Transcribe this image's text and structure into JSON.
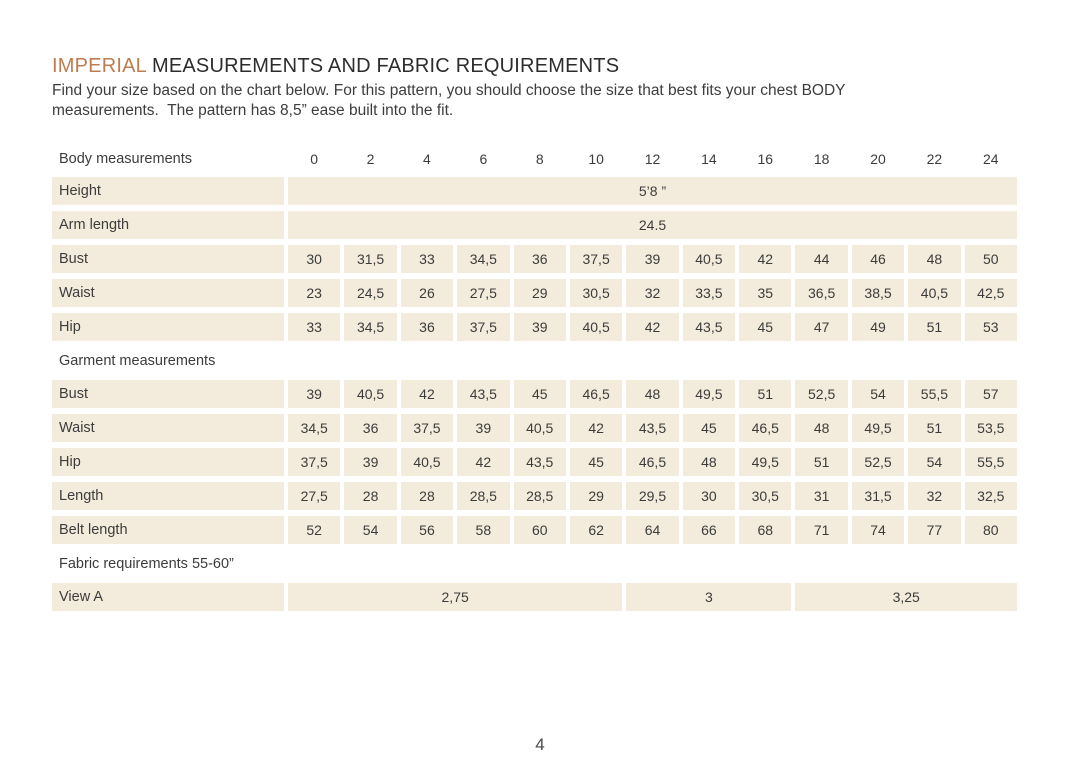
{
  "title": {
    "highlight": "IMPERIAL",
    "rest": " MEASUREMENTS AND FABRIC REQUIREMENTS"
  },
  "intro_lines": [
    "Find your size based on the chart below. For this pattern, you should choose the size that best fits your chest BODY",
    "measurements.  The pattern has 8,5” ease built into the fit."
  ],
  "colors": {
    "accent": "#bf7c50",
    "cell_background": "#f3ecdc",
    "text": "#3c3c3c"
  },
  "table": {
    "size_header": {
      "label": "Body measurements",
      "sizes": [
        "0",
        "2",
        "4",
        "6",
        "8",
        "10",
        "12",
        "14",
        "16",
        "18",
        "20",
        "22",
        "24"
      ]
    },
    "sections": [
      {
        "name": "body-measurements",
        "rows": [
          {
            "label": "Height",
            "merged": "5’8 ”"
          },
          {
            "label": "Arm length",
            "merged": "24.5"
          },
          {
            "label": "Bust",
            "values": [
              "30",
              "31,5",
              "33",
              "34,5",
              "36",
              "37,5",
              "39",
              "40,5",
              "42",
              "44",
              "46",
              "48",
              "50"
            ]
          },
          {
            "label": "Waist",
            "values": [
              "23",
              "24,5",
              "26",
              "27,5",
              "29",
              "30,5",
              "32",
              "33,5",
              "35",
              "36,5",
              "38,5",
              "40,5",
              "42,5"
            ]
          },
          {
            "label": "Hip",
            "values": [
              "33",
              "34,5",
              "36",
              "37,5",
              "39",
              "40,5",
              "42",
              "43,5",
              "45",
              "47",
              "49",
              "51",
              "53"
            ]
          }
        ]
      },
      {
        "name": "garment-measurements",
        "header": "Garment measurements",
        "rows": [
          {
            "label": "Bust",
            "values": [
              "39",
              "40,5",
              "42",
              "43,5",
              "45",
              "46,5",
              "48",
              "49,5",
              "51",
              "52,5",
              "54",
              "55,5",
              "57"
            ]
          },
          {
            "label": "Waist",
            "values": [
              "34,5",
              "36",
              "37,5",
              "39",
              "40,5",
              "42",
              "43,5",
              "45",
              "46,5",
              "48",
              "49,5",
              "51",
              "53,5"
            ]
          },
          {
            "label": "Hip",
            "values": [
              "37,5",
              "39",
              "40,5",
              "42",
              "43,5",
              "45",
              "46,5",
              "48",
              "49,5",
              "51",
              "52,5",
              "54",
              "55,5"
            ]
          },
          {
            "label": "Length",
            "values": [
              "27,5",
              "28",
              "28",
              "28,5",
              "28,5",
              "29",
              "29,5",
              "30",
              "30,5",
              "31",
              "31,5",
              "32",
              "32,5"
            ]
          },
          {
            "label": "Belt length",
            "values": [
              "52",
              "54",
              "56",
              "58",
              "60",
              "62",
              "64",
              "66",
              "68",
              "71",
              "74",
              "77",
              "80"
            ]
          }
        ]
      },
      {
        "name": "fabric-requirements",
        "header": "Fabric requirements 55-60”",
        "rows": [
          {
            "label": "View A",
            "spans": [
              {
                "value": "2,75",
                "cols": 6
              },
              {
                "value": "3",
                "cols": 3
              },
              {
                "value": "3,25",
                "cols": 4
              }
            ]
          }
        ]
      }
    ]
  },
  "footer": {
    "page_number": "4"
  }
}
